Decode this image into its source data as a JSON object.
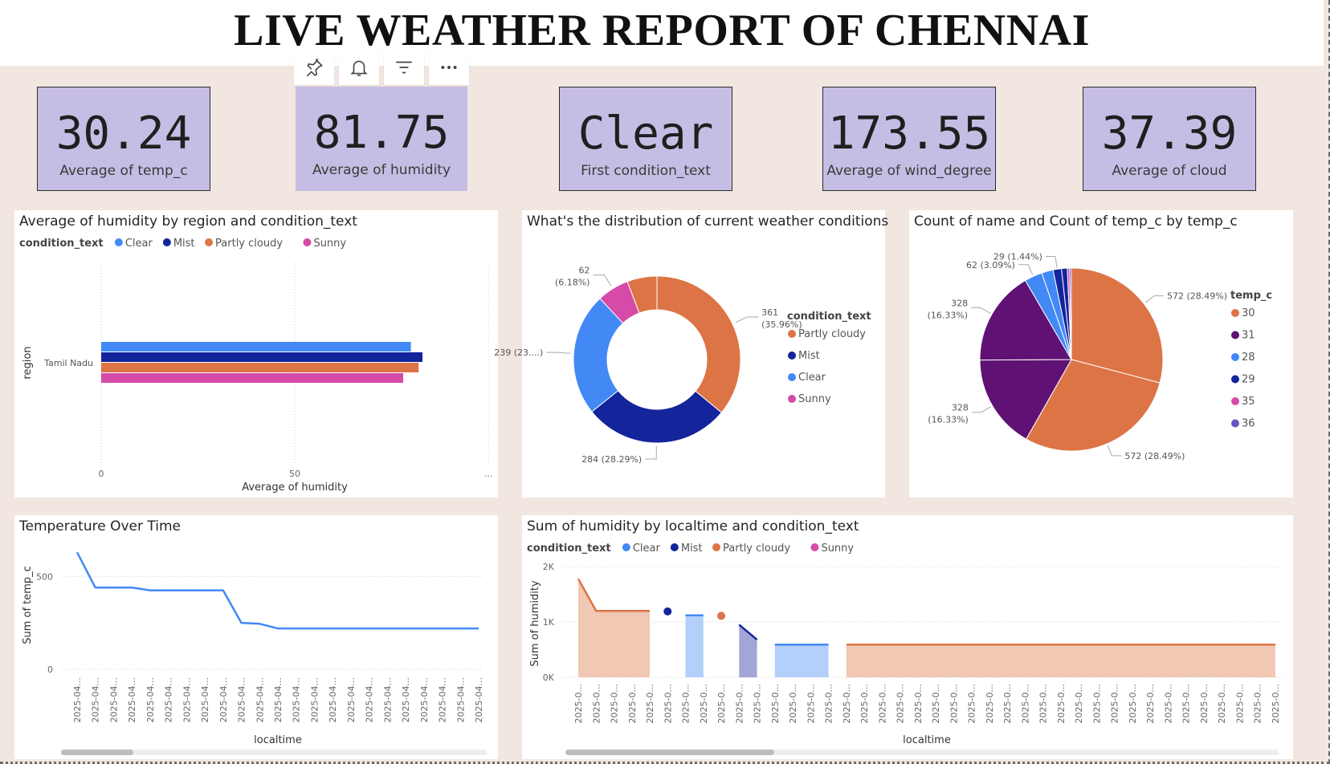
{
  "page": {
    "title": "LIVE WEATHER REPORT OF CHENNAI"
  },
  "toolbar": {
    "icons": [
      "pin-icon",
      "bell-icon",
      "filter-icon",
      "more-options-icon"
    ]
  },
  "cards": [
    {
      "value": "30.24",
      "label": "Average of temp_c"
    },
    {
      "value": "81.75",
      "label": "Average of humidity"
    },
    {
      "value": "Clear",
      "label": "First condition_text"
    },
    {
      "value": "173.55",
      "label": "Average of wind_degree"
    },
    {
      "value": "37.39",
      "label": "Average of cloud"
    }
  ],
  "colors": {
    "Clear": "#4289f5",
    "Mist": "#14249b",
    "Partly cloudy": "#dd7445",
    "Sunny": "#d64ba8",
    "30": "#dd7445",
    "31": "#5f1174",
    "28": "#4289f5",
    "29": "#14249b",
    "35": "#d64ba8",
    "36": "#6b51c0"
  },
  "chart_data": [
    {
      "id": "humidity_by_region",
      "type": "bar",
      "orientation": "horizontal",
      "title": "Average of humidity by region and condition_text",
      "legend_title": "condition_text",
      "categories": [
        "Tamil Nadu"
      ],
      "series": [
        {
          "name": "Clear",
          "values": [
            80
          ]
        },
        {
          "name": "Mist",
          "values": [
            83
          ]
        },
        {
          "name": "Partly cloudy",
          "values": [
            82
          ]
        },
        {
          "name": "Sunny",
          "values": [
            78
          ]
        }
      ],
      "xlabel": "Average of humidity",
      "ylabel": "region",
      "xticks": [
        "0",
        "50",
        "..."
      ],
      "xlim": [
        0,
        100
      ],
      "grid": true
    },
    {
      "id": "condition_distribution",
      "type": "pie",
      "variant": "donut",
      "title": "What's the distribution of current weather conditions",
      "legend_title": "condition_text",
      "legend": [
        "Partly cloudy",
        "Mist",
        "Clear",
        "Sunny"
      ],
      "slices": [
        {
          "name": "Partly cloudy",
          "value": 361,
          "label": "361 (35.96%)"
        },
        {
          "name": "Mist",
          "value": 284,
          "label": "284 (28.29%)"
        },
        {
          "name": "Clear",
          "value": 239,
          "label": "239 (23....)"
        },
        {
          "name": "Sunny",
          "value": 62,
          "label": "62 (6.18%)"
        },
        {
          "name": "Partly cloudy",
          "value": 58,
          "label": ""
        }
      ]
    },
    {
      "id": "count_by_temp",
      "type": "pie",
      "title": "Count of name and Count of temp_c by temp_c",
      "legend_title": "temp_c",
      "legend": [
        "30",
        "31",
        "28",
        "29",
        "35",
        "36"
      ],
      "slices": [
        {
          "name": "30",
          "value": 572,
          "label": "572 (28.49%)"
        },
        {
          "name": "30",
          "value": 572,
          "label": "572 (28.49%)"
        },
        {
          "name": "31",
          "value": 328,
          "label": "328 (16.33%)"
        },
        {
          "name": "31",
          "value": 328,
          "label": "328 (16.33%)"
        },
        {
          "name": "28",
          "value": 62,
          "label": "62 (3.09%)"
        },
        {
          "name": "28",
          "value": 40,
          "label": ""
        },
        {
          "name": "29",
          "value": 29,
          "label": "29 (1.44%)"
        },
        {
          "name": "29",
          "value": 20,
          "label": ""
        },
        {
          "name": "35",
          "value": 8,
          "label": ""
        },
        {
          "name": "36",
          "value": 6,
          "label": ""
        }
      ]
    },
    {
      "id": "temperature_over_time",
      "type": "line",
      "title": "Temperature Over Time",
      "xlabel": "localtime",
      "ylabel": "Sum of temp_c",
      "x_tick_label": "2025-04...",
      "yticks": [
        0,
        500
      ],
      "ylim": [
        0,
        700
      ],
      "series": [
        {
          "name": "Sum of temp_c",
          "values": [
            630,
            440,
            440,
            440,
            425,
            425,
            425,
            425,
            425,
            250,
            245,
            220,
            220,
            220,
            220,
            220,
            220,
            220,
            220,
            220,
            220,
            220,
            220
          ]
        }
      ]
    },
    {
      "id": "humidity_by_localtime",
      "type": "area",
      "title": "Sum of humidity by localtime and condition_text",
      "legend_title": "condition_text",
      "legend": [
        "Clear",
        "Mist",
        "Partly cloudy",
        "Sunny"
      ],
      "xlabel": "localtime",
      "ylabel": "Sum of humidity",
      "x_tick_label": "2025-0...",
      "yticks": [
        "0K",
        "1K",
        "2K"
      ],
      "ylim": [
        0,
        2000
      ],
      "n_points": 40,
      "segments": [
        {
          "name": "Partly cloudy",
          "kind": "area",
          "points": [
            [
              0,
              1780
            ],
            [
              1,
              1200
            ],
            [
              2,
              1200
            ],
            [
              3,
              1200
            ],
            [
              4,
              1200
            ]
          ]
        },
        {
          "name": "Mist",
          "kind": "dot",
          "points": [
            [
              5,
              1190
            ]
          ]
        },
        {
          "name": "Clear",
          "kind": "area",
          "points": [
            [
              6,
              1120
            ],
            [
              7,
              1120
            ]
          ]
        },
        {
          "name": "Partly cloudy",
          "kind": "dot",
          "points": [
            [
              8,
              1110
            ]
          ]
        },
        {
          "name": "Mist",
          "kind": "area",
          "points": [
            [
              9,
              950
            ],
            [
              10,
              680
            ]
          ]
        },
        {
          "name": "Clear",
          "kind": "area",
          "points": [
            [
              11,
              590
            ],
            [
              12,
              590
            ],
            [
              13,
              590
            ],
            [
              14,
              590
            ]
          ]
        },
        {
          "name": "Partly cloudy",
          "kind": "area",
          "points": [
            [
              15,
              590
            ],
            [
              16,
              590
            ],
            [
              17,
              590
            ],
            [
              18,
              590
            ],
            [
              19,
              590
            ],
            [
              20,
              590
            ],
            [
              21,
              590
            ],
            [
              22,
              590
            ],
            [
              23,
              590
            ],
            [
              24,
              590
            ],
            [
              25,
              590
            ],
            [
              26,
              590
            ],
            [
              27,
              590
            ],
            [
              28,
              590
            ],
            [
              29,
              590
            ],
            [
              30,
              590
            ],
            [
              31,
              590
            ],
            [
              32,
              590
            ],
            [
              33,
              590
            ],
            [
              34,
              590
            ],
            [
              35,
              590
            ],
            [
              36,
              590
            ],
            [
              37,
              590
            ],
            [
              38,
              590
            ],
            [
              39,
              590
            ]
          ]
        }
      ]
    }
  ]
}
